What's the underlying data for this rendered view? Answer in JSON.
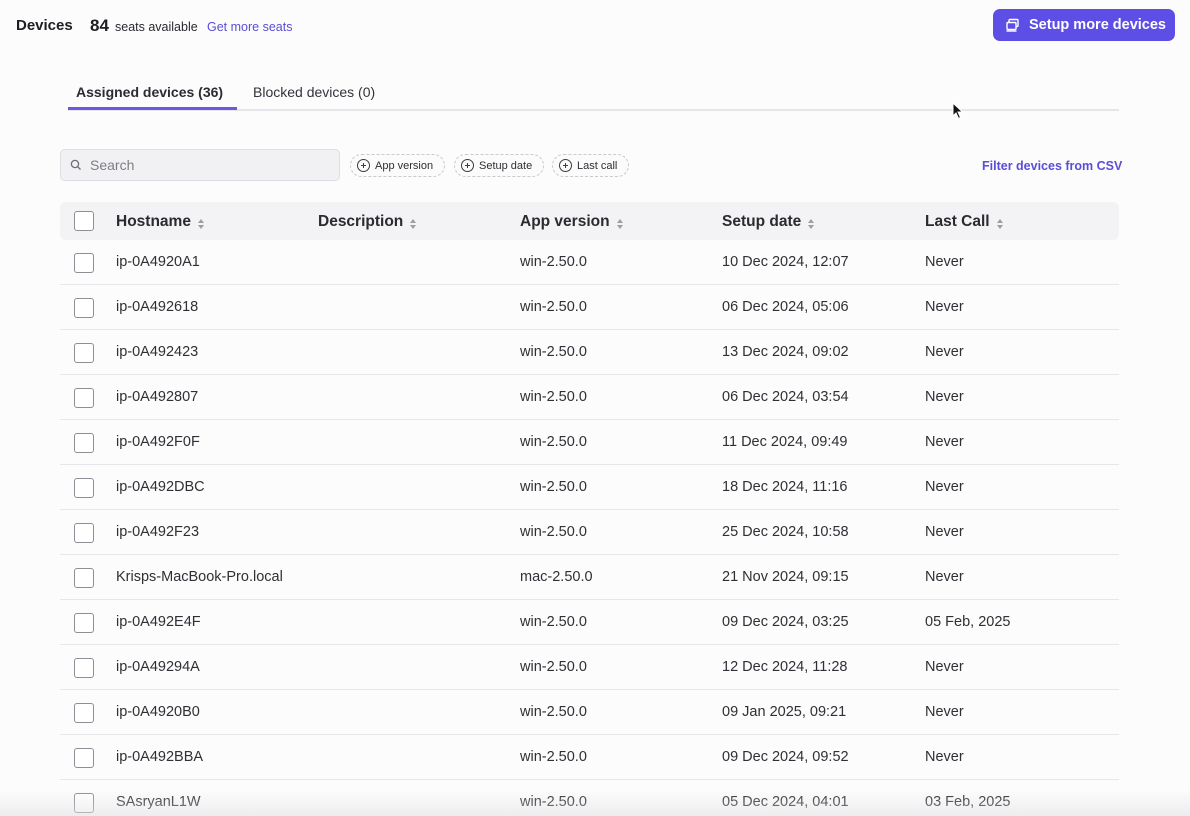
{
  "header": {
    "title": "Devices",
    "seats_count": "84",
    "seats_text": "seats available",
    "get_more_seats": "Get more seats",
    "setup_button": "Setup more devices"
  },
  "tabs": [
    {
      "label": "Assigned devices (36)",
      "active": true
    },
    {
      "label": "Blocked devices (0)",
      "active": false
    }
  ],
  "filters": {
    "search_placeholder": "Search",
    "chips": [
      "App version",
      "Setup date",
      "Last call"
    ],
    "csv_link": "Filter devices from CSV"
  },
  "table": {
    "columns": [
      "Hostname",
      "Description",
      "App version",
      "Setup date",
      "Last Call"
    ],
    "rows": [
      {
        "hostname": "ip-0A4920A1",
        "description": "",
        "app_version": "win-2.50.0",
        "setup_date": "10 Dec 2024, 12:07",
        "last_call": "Never"
      },
      {
        "hostname": "ip-0A492618",
        "description": "",
        "app_version": "win-2.50.0",
        "setup_date": "06 Dec 2024, 05:06",
        "last_call": "Never"
      },
      {
        "hostname": "ip-0A492423",
        "description": "",
        "app_version": "win-2.50.0",
        "setup_date": "13 Dec 2024, 09:02",
        "last_call": "Never"
      },
      {
        "hostname": "ip-0A492807",
        "description": "",
        "app_version": "win-2.50.0",
        "setup_date": "06 Dec 2024, 03:54",
        "last_call": "Never"
      },
      {
        "hostname": "ip-0A492F0F",
        "description": "",
        "app_version": "win-2.50.0",
        "setup_date": "11 Dec 2024, 09:49",
        "last_call": "Never"
      },
      {
        "hostname": "ip-0A492DBC",
        "description": "",
        "app_version": "win-2.50.0",
        "setup_date": "18 Dec 2024, 11:16",
        "last_call": "Never"
      },
      {
        "hostname": "ip-0A492F23",
        "description": "",
        "app_version": "win-2.50.0",
        "setup_date": "25 Dec 2024, 10:58",
        "last_call": "Never"
      },
      {
        "hostname": "Krisps-MacBook-Pro.local",
        "description": "",
        "app_version": "mac-2.50.0",
        "setup_date": "21 Nov 2024, 09:15",
        "last_call": "Never"
      },
      {
        "hostname": "ip-0A492E4F",
        "description": "",
        "app_version": "win-2.50.0",
        "setup_date": "09 Dec 2024, 03:25",
        "last_call": "05 Feb, 2025"
      },
      {
        "hostname": "ip-0A49294A",
        "description": "",
        "app_version": "win-2.50.0",
        "setup_date": "12 Dec 2024, 11:28",
        "last_call": "Never"
      },
      {
        "hostname": "ip-0A4920B0",
        "description": "",
        "app_version": "win-2.50.0",
        "setup_date": "09 Jan 2025, 09:21",
        "last_call": "Never"
      },
      {
        "hostname": "ip-0A492BBA",
        "description": "",
        "app_version": "win-2.50.0",
        "setup_date": "09 Dec 2024, 09:52",
        "last_call": "Never"
      },
      {
        "hostname": "SAsryanL1W",
        "description": "",
        "app_version": "win-2.50.0",
        "setup_date": "05 Dec 2024, 04:01",
        "last_call": "03 Feb, 2025"
      }
    ]
  },
  "colors": {
    "accent": "#5d4ee6",
    "link": "#5b4dd6"
  }
}
